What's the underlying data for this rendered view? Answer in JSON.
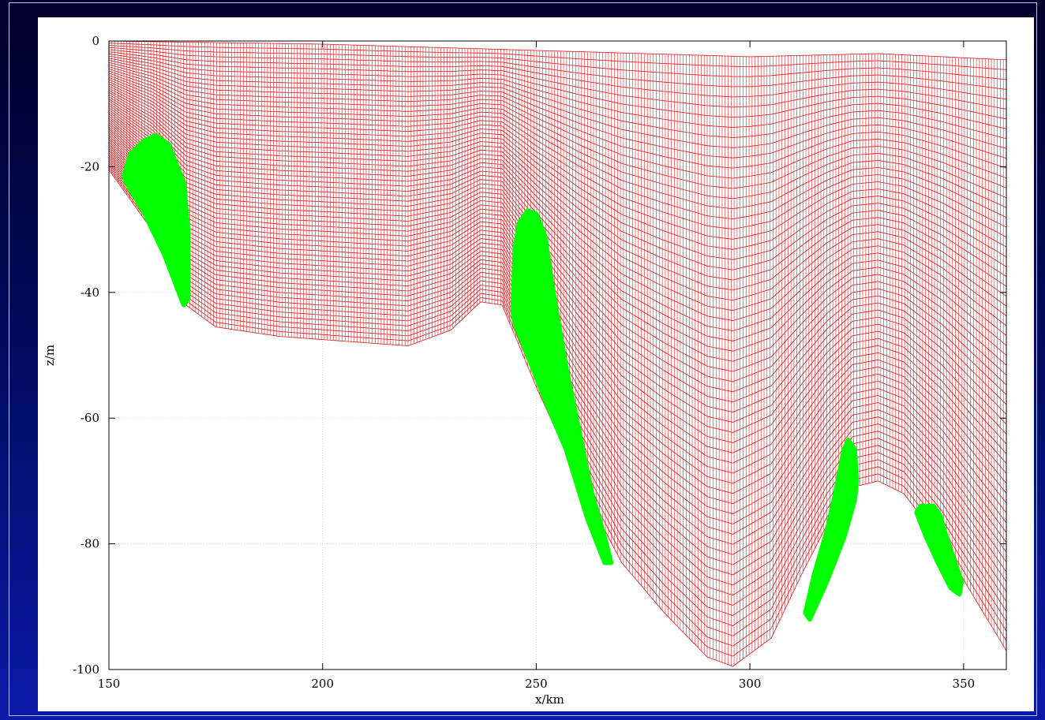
{
  "chart_data": {
    "type": "line",
    "title": "",
    "xlabel": "x/km",
    "ylabel": "z/m",
    "xlim": [
      150,
      360
    ],
    "ylim": [
      -100,
      0
    ],
    "xticks": [
      "150",
      "200",
      "250",
      "300",
      "350"
    ],
    "yticks": [
      "0",
      "-20",
      "-40",
      "-60",
      "-80",
      "-100"
    ],
    "grid": true,
    "series": [
      {
        "kind": "sigma-grid-mesh",
        "color": "#e0161a",
        "surface_depth": [
          [
            150,
            0
          ],
          [
            200,
            -0.5
          ],
          [
            250,
            -1.5
          ],
          [
            300,
            -2.5
          ],
          [
            330,
            -2
          ],
          [
            360,
            -3
          ]
        ],
        "bottom_depth": [
          [
            150,
            -20.5
          ],
          [
            160,
            -30
          ],
          [
            168,
            -42
          ],
          [
            175,
            -45.5
          ],
          [
            190,
            -47
          ],
          [
            210,
            -48
          ],
          [
            220,
            -48.5
          ],
          [
            230,
            -46
          ],
          [
            237,
            -41.5
          ],
          [
            242,
            -42
          ],
          [
            250,
            -55
          ],
          [
            260,
            -70
          ],
          [
            270,
            -83
          ],
          [
            280,
            -91
          ],
          [
            290,
            -98
          ],
          [
            296,
            -99.5
          ],
          [
            305,
            -95
          ],
          [
            312,
            -85
          ],
          [
            318,
            -77
          ],
          [
            324,
            -71
          ],
          [
            330,
            -70
          ],
          [
            336,
            -72
          ],
          [
            345,
            -80
          ],
          [
            352,
            -88
          ],
          [
            360,
            -97
          ]
        ]
      },
      {
        "kind": "filled-region",
        "color": "#00ff00",
        "regions": [
          {
            "outline": [
              [
                153.5,
                -21.5
              ],
              [
                155,
                -18
              ],
              [
                158,
                -16
              ],
              [
                161,
                -15
              ],
              [
                164,
                -16.5
              ],
              [
                166,
                -20
              ],
              [
                167.5,
                -22.5
              ],
              [
                168.5,
                -30
              ],
              [
                168.5,
                -41
              ],
              [
                167.5,
                -42
              ],
              [
                163,
                -34
              ],
              [
                158,
                -27
              ],
              [
                154,
                -22.5
              ]
            ]
          },
          {
            "outline": [
              [
                244.5,
                -43
              ],
              [
                245,
                -33
              ],
              [
                246,
                -29
              ],
              [
                248,
                -27
              ],
              [
                250,
                -27.5
              ],
              [
                252,
                -31
              ],
              [
                254,
                -40
              ],
              [
                257,
                -52
              ],
              [
                260,
                -62
              ],
              [
                263,
                -72
              ],
              [
                266,
                -79
              ],
              [
                267.5,
                -83
              ],
              [
                266,
                -83
              ],
              [
                262,
                -76
              ],
              [
                257,
                -65
              ],
              [
                252,
                -57
              ],
              [
                248,
                -50
              ],
              [
                245,
                -45
              ]
            ]
          },
          {
            "outline": [
              [
                313,
                -91
              ],
              [
                315,
                -85
              ],
              [
                318,
                -78
              ],
              [
                320,
                -72
              ],
              [
                322,
                -65
              ],
              [
                323,
                -63.5
              ],
              [
                324.5,
                -65
              ],
              [
                325,
                -70
              ],
              [
                324.5,
                -73
              ],
              [
                322,
                -79
              ],
              [
                318,
                -86
              ],
              [
                314,
                -92
              ]
            ]
          },
          {
            "outline": [
              [
                339,
                -75
              ],
              [
                340,
                -74
              ],
              [
                343,
                -74
              ],
              [
                344.5,
                -75.5
              ],
              [
                346,
                -79
              ],
              [
                348,
                -83
              ],
              [
                349.5,
                -86
              ],
              [
                349,
                -88
              ],
              [
                347,
                -87
              ],
              [
                344,
                -83
              ],
              [
                341,
                -78.5
              ]
            ]
          }
        ]
      }
    ]
  }
}
